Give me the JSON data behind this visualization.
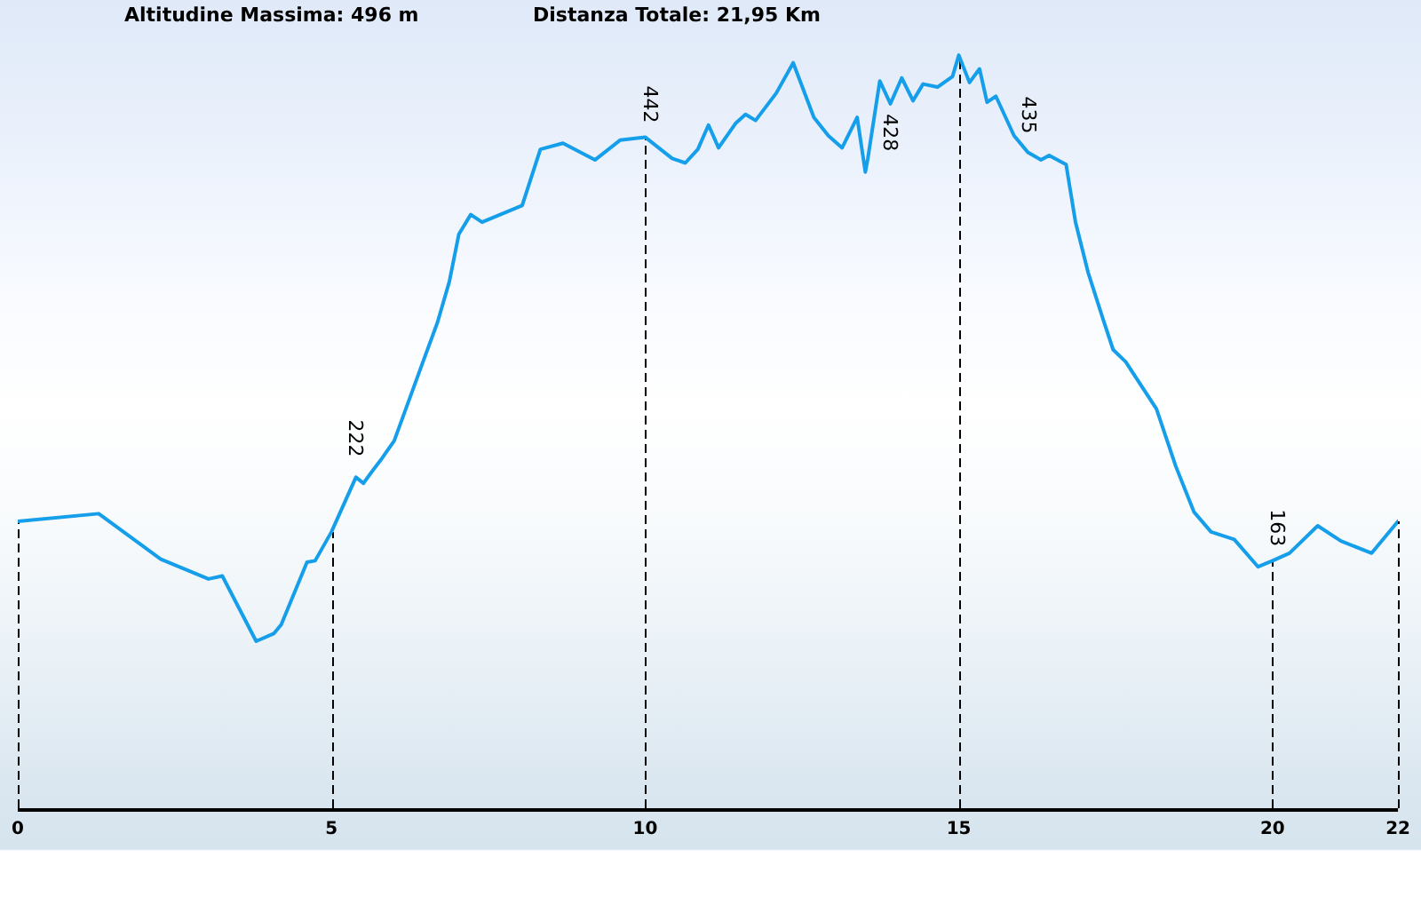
{
  "chart_data": {
    "type": "line",
    "title": "Altitudine Massima: 496 m",
    "subtitle": "Distanza Totale: 21,95 Km",
    "x": [
      0,
      1.29,
      2.28,
      3.04,
      3.26,
      3.8,
      4.08,
      4.2,
      4.61,
      4.74,
      5.0,
      5.39,
      5.51,
      5.65,
      5.78,
      6.0,
      6.45,
      6.69,
      6.88,
      7.03,
      7.22,
      7.4,
      8.04,
      8.33,
      8.69,
      9.2,
      9.6,
      10,
      10.43,
      10.64,
      10.84,
      11.01,
      11.17,
      11.44,
      11.6,
      11.76,
      12.09,
      12.36,
      12.69,
      12.92,
      13.14,
      13.38,
      13.51,
      13.55,
      13.74,
      13.91,
      14.09,
      14.27,
      14.43,
      14.66,
      14.9,
      15,
      15.17,
      15.33,
      15.45,
      15.59,
      15.88,
      16.04,
      16.1,
      16.31,
      16.44,
      16.71,
      16.86,
      17.06,
      17.3,
      17.46,
      17.66,
      18.15,
      18.46,
      18.75,
      19.02,
      19.39,
      19.77,
      20,
      20.27,
      20.72,
      21.09,
      21.58,
      22
    ],
    "series": [
      {
        "color": "#159ee9",
        "values": [
          189,
          194,
          164,
          151,
          153,
          110,
          115,
          121,
          162,
          163,
          182,
          218,
          214,
          222,
          229,
          242,
          293,
          320,
          347,
          378,
          391,
          386,
          397,
          434,
          438,
          427,
          440,
          442,
          428,
          425,
          434,
          450,
          435,
          451,
          457,
          453,
          471,
          491,
          455,
          443,
          435,
          455,
          419,
          428,
          479,
          464,
          481,
          466,
          477,
          475,
          482,
          496,
          478,
          487,
          465,
          469,
          443,
          435,
          432,
          427,
          430,
          424,
          386,
          353,
          322,
          302,
          294,
          263,
          225,
          195,
          182,
          177,
          159,
          163,
          168,
          186,
          176,
          168,
          189
        ],
        "value_labels": [
          null,
          null,
          null,
          null,
          null,
          null,
          null,
          null,
          null,
          null,
          null,
          null,
          null,
          "222",
          null,
          null,
          null,
          null,
          null,
          null,
          null,
          null,
          null,
          null,
          null,
          null,
          null,
          "442",
          null,
          null,
          null,
          null,
          null,
          null,
          null,
          null,
          null,
          null,
          null,
          null,
          null,
          null,
          null,
          "428",
          null,
          null,
          null,
          null,
          null,
          null,
          null,
          null,
          null,
          null,
          null,
          null,
          null,
          "435",
          null,
          null,
          null,
          null,
          null,
          null,
          null,
          null,
          null,
          null,
          null,
          null,
          null,
          null,
          null,
          "163",
          null,
          null,
          null,
          null,
          null
        ]
      }
    ],
    "xlim": [
      0,
      22
    ],
    "xticks": [
      0,
      5,
      10,
      15,
      20,
      22
    ],
    "ylim": [
      0,
      530
    ],
    "tick_labels": "x",
    "ref_lines": [
      {
        "axis": "x",
        "value": 0,
        "color": "#000000",
        "line_style": "dashed"
      },
      {
        "axis": "x",
        "value": 5,
        "color": "#000000",
        "line_style": "dashed"
      },
      {
        "axis": "x",
        "value": 10,
        "color": "#000000",
        "line_style": "dashed"
      },
      {
        "axis": "x",
        "value": 15,
        "color": "#000000",
        "line_style": "dashed"
      },
      {
        "axis": "x",
        "value": 20,
        "color": "#000000",
        "line_style": "dashed"
      },
      {
        "axis": "x",
        "value": 22,
        "color": "#000000",
        "line_style": "dashed"
      }
    ]
  }
}
